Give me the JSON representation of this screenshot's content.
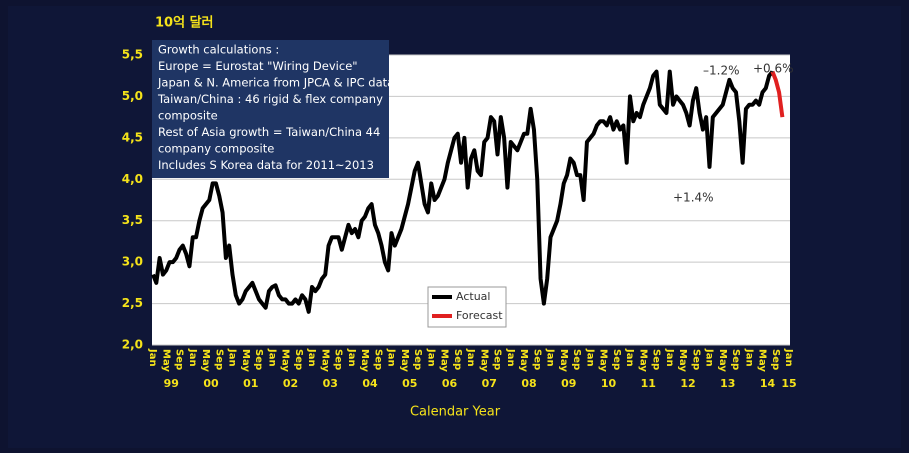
{
  "chart_data": {
    "type": "line",
    "y_label": "10억 달러",
    "x_label": "Calendar Year",
    "note": [
      "Growth calculations :",
      "Europe = Eurostat \"Wiring Device\"",
      "Japan & N. America from JPCA & IPC data",
      "Taiwan/China : 46 rigid & flex company",
      "composite",
      "Rest of Asia growth = Taiwan/China 44",
      "company composite",
      "Includes S Korea data for 2011~2013"
    ],
    "annotations": [
      "–1.2%",
      "+0.6%",
      "+1.4%"
    ],
    "years": [
      "99",
      "00",
      "01",
      "02",
      "03",
      "04",
      "05",
      "06",
      "07",
      "08",
      "09",
      "10",
      "11",
      "12",
      "13",
      "14",
      "15"
    ],
    "categories": [
      "Jan",
      null,
      null,
      null,
      "May",
      null,
      null,
      null,
      "Sep",
      null,
      null,
      null,
      "Jan",
      null,
      null,
      null,
      "May",
      null,
      null,
      null,
      "Sep",
      null,
      null,
      null,
      "Jan",
      null,
      null,
      null,
      "May",
      null,
      null,
      null,
      "Sep",
      null,
      null,
      null,
      "Jan",
      null,
      null,
      null,
      "May",
      null,
      null,
      null,
      "Sep",
      null,
      null,
      null,
      "Jan",
      null,
      null,
      null,
      "May",
      null,
      null,
      null,
      "Sep",
      null,
      null,
      null,
      "Jan",
      null,
      null,
      null,
      "May",
      null,
      null,
      null,
      "Sep",
      null,
      null,
      null,
      "Jan",
      null,
      null,
      null,
      "May",
      null,
      null,
      null,
      "Sep",
      null,
      null,
      null,
      "Jan",
      null,
      null,
      null,
      "May",
      null,
      null,
      null,
      "Sep",
      null,
      null,
      null,
      "Jan",
      null,
      null,
      null,
      "May",
      null,
      null,
      null,
      "Sep",
      null,
      null,
      null,
      "Jan",
      null,
      null,
      null,
      "May",
      null,
      null,
      null,
      "Sep",
      null,
      null,
      null,
      "Jan",
      null,
      null,
      null,
      "May",
      null,
      null,
      null,
      "Sep",
      null,
      null,
      null,
      "Jan",
      null,
      null,
      null,
      "May",
      null,
      null,
      null,
      "Sep",
      null,
      null,
      null,
      "Jan",
      null,
      null,
      null,
      "May",
      null,
      null,
      null,
      "Sep",
      null,
      null,
      null,
      "Jan",
      null,
      null,
      null,
      "May",
      null,
      null,
      null,
      "Sep",
      null,
      null,
      null,
      "Jan",
      null,
      null,
      null,
      "May",
      null,
      null,
      null,
      "Sep",
      null,
      null,
      null,
      "Jan",
      null,
      null,
      null,
      "May",
      null,
      null,
      null,
      "Sep",
      null,
      null,
      null,
      "Jan"
    ],
    "series": [
      {
        "name": "Actual",
        "color": "#000000",
        "values": [
          2.85,
          2.75,
          3.05,
          2.85,
          2.9,
          3.0,
          3.0,
          3.05,
          3.15,
          3.2,
          3.1,
          2.95,
          3.3,
          3.3,
          3.5,
          3.65,
          3.7,
          3.75,
          3.95,
          3.95,
          3.8,
          3.6,
          3.05,
          3.2,
          2.85,
          2.6,
          2.5,
          2.55,
          2.65,
          2.7,
          2.75,
          2.65,
          2.55,
          2.5,
          2.45,
          2.65,
          2.7,
          2.72,
          2.6,
          2.55,
          2.55,
          2.5,
          2.5,
          2.55,
          2.5,
          2.6,
          2.55,
          2.4,
          2.7,
          2.65,
          2.7,
          2.8,
          2.85,
          3.2,
          3.3,
          3.3,
          3.3,
          3.15,
          3.3,
          3.45,
          3.35,
          3.4,
          3.3,
          3.5,
          3.55,
          3.65,
          3.7,
          3.45,
          3.35,
          3.2,
          3.0,
          2.9,
          3.35,
          3.2,
          3.3,
          3.4,
          3.55,
          3.7,
          3.9,
          4.1,
          4.2,
          3.95,
          3.7,
          3.6,
          3.95,
          3.75,
          3.8,
          3.9,
          4.0,
          4.2,
          4.35,
          4.5,
          4.55,
          4.2,
          4.5,
          3.9,
          4.25,
          4.35,
          4.1,
          4.05,
          4.45,
          4.5,
          4.75,
          4.7,
          4.3,
          4.75,
          4.5,
          3.9,
          4.45,
          4.4,
          4.35,
          4.45,
          4.55,
          4.55,
          4.85,
          4.6,
          4.0,
          2.8,
          2.5,
          2.8,
          3.3,
          3.4,
          3.5,
          3.7,
          3.95,
          4.05,
          4.25,
          4.2,
          4.05,
          4.05,
          3.75,
          4.45,
          4.5,
          4.55,
          4.65,
          4.7,
          4.7,
          4.65,
          4.75,
          4.6,
          4.7,
          4.6,
          4.65,
          4.2,
          5.0,
          4.7,
          4.8,
          4.75,
          4.9,
          5.0,
          5.1,
          5.25,
          5.3,
          4.9,
          4.85,
          4.8,
          5.3,
          4.9,
          5.0,
          4.95,
          4.9,
          4.8,
          4.65,
          4.95,
          5.1,
          4.8,
          4.6,
          4.75,
          4.15,
          4.75,
          4.8,
          4.85,
          4.9,
          5.05,
          5.2,
          5.1,
          5.05,
          4.7,
          4.2,
          4.85,
          4.9,
          4.9,
          4.95,
          4.9,
          5.05,
          5.1,
          5.25,
          5.3,
          null,
          null,
          null,
          null,
          null
        ]
      },
      {
        "name": "Forecast",
        "color": "#e02020",
        "values": [
          null,
          null,
          null,
          null,
          null,
          null,
          null,
          null,
          null,
          null,
          null,
          null,
          null,
          null,
          null,
          null,
          null,
          null,
          null,
          null,
          null,
          null,
          null,
          null,
          null,
          null,
          null,
          null,
          null,
          null,
          null,
          null,
          null,
          null,
          null,
          null,
          null,
          null,
          null,
          null,
          null,
          null,
          null,
          null,
          null,
          null,
          null,
          null,
          null,
          null,
          null,
          null,
          null,
          null,
          null,
          null,
          null,
          null,
          null,
          null,
          null,
          null,
          null,
          null,
          null,
          null,
          null,
          null,
          null,
          null,
          null,
          null,
          null,
          null,
          null,
          null,
          null,
          null,
          null,
          null,
          null,
          null,
          null,
          null,
          null,
          null,
          null,
          null,
          null,
          null,
          null,
          null,
          null,
          null,
          null,
          null,
          null,
          null,
          null,
          null,
          null,
          null,
          null,
          null,
          null,
          null,
          null,
          null,
          null,
          null,
          null,
          null,
          null,
          null,
          null,
          null,
          null,
          null,
          null,
          null,
          null,
          null,
          null,
          null,
          null,
          null,
          null,
          null,
          null,
          null,
          null,
          null,
          null,
          null,
          null,
          null,
          null,
          null,
          null,
          null,
          null,
          null,
          null,
          null,
          null,
          null,
          null,
          null,
          null,
          null,
          null,
          null,
          null,
          null,
          null,
          null,
          null,
          null,
          null,
          null,
          null,
          null,
          null,
          null,
          null,
          null,
          null,
          null,
          null,
          null,
          null,
          null,
          null,
          null,
          null,
          null,
          null,
          null,
          null,
          null,
          null,
          null,
          null,
          null,
          null,
          null,
          null,
          5.3,
          5.2,
          5.05,
          4.75,
          null,
          null
        ]
      }
    ],
    "ylim": [
      2.0,
      5.5
    ],
    "yticks": [
      {
        "value": 2.0,
        "label": "2,0"
      },
      {
        "value": 2.5,
        "label": "2,5"
      },
      {
        "value": 3.0,
        "label": "3,0"
      },
      {
        "value": 3.5,
        "label": "3,5"
      },
      {
        "value": 4.0,
        "label": "4,0"
      },
      {
        "value": 4.5,
        "label": "4,5"
      },
      {
        "value": 5.0,
        "label": "5,0"
      },
      {
        "value": 5.5,
        "label": "5,5"
      }
    ],
    "grid": true
  }
}
